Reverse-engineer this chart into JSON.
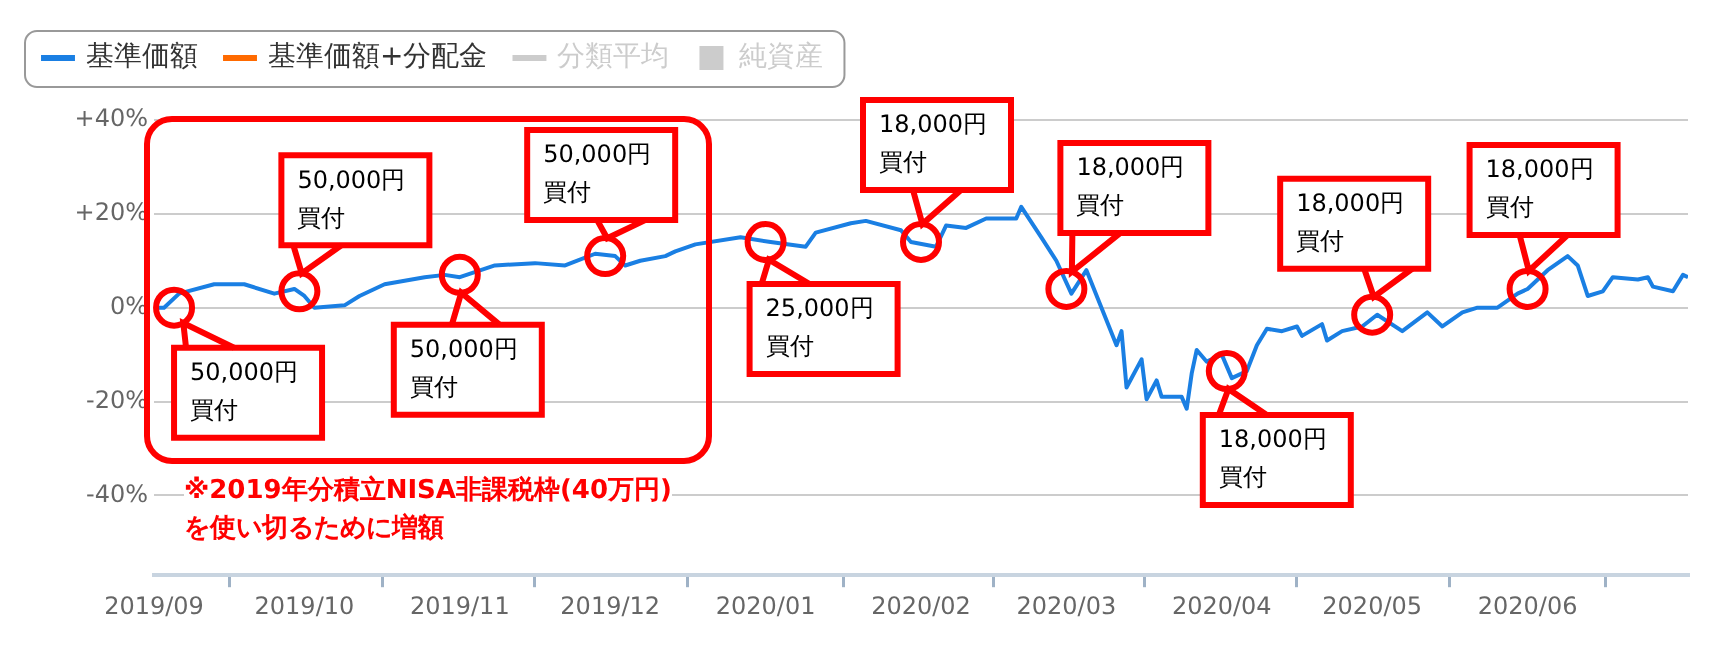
{
  "chart_data": {
    "type": "line",
    "x": [
      "2019-09-01",
      "2019-09-03",
      "2019-09-06",
      "2019-09-13",
      "2019-09-19",
      "2019-09-25",
      "2019-09-29",
      "2019-10-01",
      "2019-10-03",
      "2019-10-09",
      "2019-10-12",
      "2019-10-17",
      "2019-10-25",
      "2019-10-29",
      "2019-11-01",
      "2019-11-08",
      "2019-11-16",
      "2019-11-22",
      "2019-11-28",
      "2019-12-02",
      "2019-12-04",
      "2019-12-07",
      "2019-12-12",
      "2019-12-14",
      "2019-12-18",
      "2019-12-27",
      "2020-01-02",
      "2020-01-09",
      "2020-01-11",
      "2020-01-18",
      "2020-01-21",
      "2020-01-28",
      "2020-01-30",
      "2020-02-04",
      "2020-02-06",
      "2020-02-10",
      "2020-02-14",
      "2020-02-20",
      "2020-02-21",
      "2020-02-25",
      "2020-02-28",
      "2020-03-02",
      "2020-03-05",
      "2020-03-08",
      "2020-03-11",
      "2020-03-12",
      "2020-03-13",
      "2020-03-16",
      "2020-03-17",
      "2020-03-19",
      "2020-03-20",
      "2020-03-24",
      "2020-03-25",
      "2020-03-26",
      "2020-03-27",
      "2020-03-29",
      "2020-04-01",
      "2020-04-03",
      "2020-04-06",
      "2020-04-08",
      "2020-04-10",
      "2020-04-13",
      "2020-04-16",
      "2020-04-17",
      "2020-04-21",
      "2020-04-22",
      "2020-04-25",
      "2020-04-29",
      "2020-05-02",
      "2020-05-07",
      "2020-05-12",
      "2020-05-15",
      "2020-05-19",
      "2020-05-22",
      "2020-05-26",
      "2020-05-30",
      "2020-06-01",
      "2020-06-05",
      "2020-06-09",
      "2020-06-11",
      "2020-06-13",
      "2020-06-16",
      "2020-06-18",
      "2020-06-23",
      "2020-06-25",
      "2020-06-26",
      "2020-06-30",
      "2020-07-02",
      "2020-07-03"
    ],
    "series": [
      {
        "name": "基準価額",
        "color": "#1a7fe3",
        "values": [
          0,
          0,
          3,
          5,
          5,
          3,
          4,
          2.5,
          0,
          0.5,
          2.5,
          5,
          6.5,
          7,
          6.5,
          9,
          9.5,
          9,
          11.5,
          11,
          9,
          10,
          11,
          12,
          13.5,
          15,
          14,
          13,
          16,
          18,
          18.5,
          16.5,
          14,
          13,
          17.5,
          17,
          19,
          19,
          21.5,
          15,
          10,
          3,
          8,
          0,
          -8,
          -5,
          -17,
          -11,
          -19.5,
          -15.5,
          -19,
          -19,
          -21.5,
          -14,
          -9,
          -11.5,
          -10,
          -15,
          -13.5,
          -8,
          -4.5,
          -5,
          -4,
          -6,
          -3.5,
          -7,
          -5,
          -4,
          -1.5,
          -5,
          -1,
          -4,
          -1,
          0,
          0,
          3,
          4,
          8,
          11,
          9,
          2.5,
          3.5,
          6.5,
          6,
          6.5,
          4.5,
          3.5,
          7,
          6.5
        ]
      },
      {
        "name": "基準価額+分配金",
        "color": "#ff6a00",
        "values": [
          null,
          null,
          null,
          null,
          null,
          null,
          null,
          null,
          null,
          null,
          null,
          null,
          null,
          null,
          null,
          null,
          null,
          null,
          null,
          null,
          null,
          null,
          null,
          null,
          null,
          null,
          null,
          null,
          null,
          null,
          null,
          null,
          null,
          null,
          null,
          null,
          null,
          null,
          null,
          null,
          null,
          null,
          null,
          null,
          null,
          null,
          null,
          null,
          null,
          null,
          null,
          null,
          null,
          null,
          null,
          null,
          null,
          null,
          null,
          null,
          null,
          null,
          null,
          null,
          null,
          null,
          null,
          null,
          null,
          null,
          null,
          null,
          null,
          null,
          null,
          null,
          null,
          null,
          null,
          null,
          null,
          null,
          null,
          null,
          null,
          null,
          null,
          null,
          null
        ]
      },
      {
        "name": "分類平均",
        "color": "#cccccc",
        "values": [
          null,
          null,
          null,
          null,
          null,
          null,
          null,
          null,
          null,
          null,
          null,
          null,
          null,
          null,
          null,
          null,
          null,
          null,
          null,
          null,
          null,
          null,
          null,
          null,
          null,
          null,
          null,
          null,
          null,
          null,
          null,
          null,
          null,
          null,
          null,
          null,
          null,
          null,
          null,
          null,
          null,
          null,
          null,
          null,
          null,
          null,
          null,
          null,
          null,
          null,
          null,
          null,
          null,
          null,
          null,
          null,
          null,
          null,
          null,
          null,
          null,
          null,
          null,
          null,
          null,
          null,
          null,
          null,
          null,
          null,
          null,
          null,
          null,
          null,
          null,
          null,
          null,
          null,
          null,
          null,
          null,
          null,
          null,
          null,
          null,
          null,
          null,
          null,
          null
        ]
      },
      {
        "name": "純資産",
        "type": "bar",
        "color": "#cccccc",
        "values": [
          null,
          null,
          null,
          null,
          null,
          null,
          null,
          null,
          null,
          null,
          null,
          null,
          null,
          null,
          null,
          null,
          null,
          null,
          null,
          null,
          null,
          null,
          null,
          null,
          null,
          null,
          null,
          null,
          null,
          null,
          null,
          null,
          null,
          null,
          null,
          null,
          null,
          null,
          null,
          null,
          null,
          null,
          null,
          null,
          null,
          null,
          null,
          null,
          null,
          null,
          null,
          null,
          null,
          null,
          null,
          null,
          null,
          null,
          null,
          null,
          null,
          null,
          null,
          null,
          null,
          null,
          null,
          null,
          null,
          null,
          null,
          null,
          null,
          null,
          null,
          null,
          null,
          null,
          null,
          null,
          null,
          null,
          null,
          null,
          null,
          null,
          null,
          null,
          null
        ]
      }
    ],
    "xlim": [
      "2019-09-01",
      "2020-07-03"
    ],
    "xticks": [
      {
        "value": "2019-09-01",
        "label": "2019/09"
      },
      {
        "value": "2019-10-01",
        "label": "2019/10"
      },
      {
        "value": "2019-11-01",
        "label": "2019/11"
      },
      {
        "value": "2019-12-01",
        "label": "2019/12"
      },
      {
        "value": "2020-01-01",
        "label": "2020/01"
      },
      {
        "value": "2020-02-01",
        "label": "2020/02"
      },
      {
        "value": "2020-03-01",
        "label": "2020/03"
      },
      {
        "value": "2020-04-01",
        "label": "2020/04"
      },
      {
        "value": "2020-05-01",
        "label": "2020/05"
      },
      {
        "value": "2020-06-01",
        "label": "2020/06"
      }
    ],
    "ylim": [
      -57,
      40
    ],
    "yticks": [
      {
        "value": -40,
        "label": "-40%"
      },
      {
        "value": -20,
        "label": "-20%"
      },
      {
        "value": 0,
        "label": "0%"
      },
      {
        "value": 20,
        "label": "+20%"
      },
      {
        "value": 40,
        "label": "+40%"
      }
    ],
    "grid": "y",
    "legend": "top left",
    "marker": "none",
    "line_style": "solid",
    "annotations": [
      {
        "text": "50,000円買付",
        "x": "2019-09-05",
        "y": 0
      },
      {
        "text": "50,000円買付",
        "x": "2019-09-30",
        "y": 3.5
      },
      {
        "text": "50,000円買付",
        "x": "2019-11-01",
        "y": 7
      },
      {
        "text": "50,000円買付",
        "x": "2019-11-30",
        "y": 11
      },
      {
        "text": "25,000円買付",
        "x": "2020-01-01",
        "y": 14
      },
      {
        "text": "18,000円買付",
        "x": "2020-02-01",
        "y": 14
      },
      {
        "text": "18,000円買付",
        "x": "2020-03-01",
        "y": 4
      },
      {
        "text": "18,000円買付",
        "x": "2020-04-02",
        "y": -13.5
      },
      {
        "text": "18,000円買付",
        "x": "2020-05-01",
        "y": -1.5
      },
      {
        "text": "18,000円買付",
        "x": "2020-06-01",
        "y": 4
      },
      "※2019年分積立NISA非課税枠(40万円)\nを使い切るために増額"
    ]
  }
}
